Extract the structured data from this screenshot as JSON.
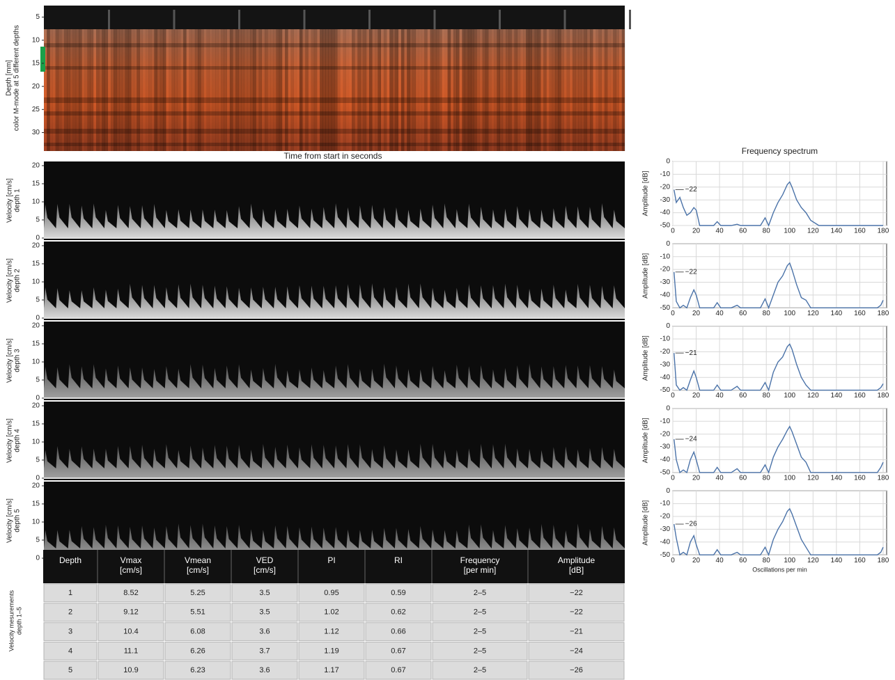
{
  "chart_data": [
    {
      "type": "heatmap",
      "ylabel": [
        "Depth [mm]",
        "color M-mode at 5 different depths"
      ],
      "xlabel": "Time from start in seconds",
      "ylim": [
        2.5,
        34
      ],
      "yticks": [
        5,
        10,
        15,
        20,
        25,
        30
      ]
    },
    {
      "type": "spectrogram",
      "ylabel": [
        "Velocity [cm/s]",
        "depth 1"
      ],
      "ylim": [
        0,
        20
      ],
      "yticks": [
        0,
        5,
        10,
        15,
        20
      ]
    },
    {
      "type": "spectrogram",
      "ylabel": [
        "Velocity [cm/s]",
        "depth 2"
      ],
      "ylim": [
        0,
        20
      ],
      "yticks": [
        0,
        5,
        10,
        15,
        20
      ]
    },
    {
      "type": "spectrogram",
      "ylabel": [
        "Velocity [cm/s]",
        "depth 3"
      ],
      "ylim": [
        0,
        20
      ],
      "yticks": [
        0,
        5,
        10,
        15,
        20
      ]
    },
    {
      "type": "spectrogram",
      "ylabel": [
        "Velocity [cm/s]",
        "depth 4"
      ],
      "ylim": [
        0,
        20
      ],
      "yticks": [
        0,
        5,
        10,
        15,
        20
      ]
    },
    {
      "type": "spectrogram",
      "ylabel": [
        "Velocity [cm/s]",
        "depth 5"
      ],
      "ylim": [
        0,
        20
      ],
      "yticks": [
        0,
        5,
        10,
        15,
        20
      ]
    },
    {
      "type": "line",
      "title": "Frequency spectrum",
      "ylabel": "Amplitude [dB]",
      "annotation": "−22",
      "color": "#4a72a8",
      "grid": true,
      "xlim": [
        0,
        183
      ],
      "ylim": [
        -50,
        0
      ],
      "xticks": [
        0,
        20,
        40,
        60,
        80,
        100,
        120,
        140,
        160,
        180
      ],
      "yticks": [
        0,
        -10,
        -20,
        -30,
        -40,
        -50
      ],
      "x": [
        1,
        3,
        6,
        9,
        12,
        15,
        18,
        20,
        23,
        26,
        35,
        38,
        41,
        50,
        55,
        58,
        75,
        79,
        82,
        86,
        90,
        94,
        98,
        100,
        102,
        106,
        110,
        114,
        118,
        125,
        140,
        160,
        175,
        178,
        180
      ],
      "values": [
        -22,
        -32,
        -28,
        -36,
        -42,
        -40,
        -36,
        -38,
        -50,
        -50,
        -50,
        -47,
        -50,
        -50,
        -49,
        -50,
        -50,
        -44,
        -50,
        -40,
        -32,
        -26,
        -18,
        -16,
        -20,
        -30,
        -36,
        -40,
        -46,
        -50,
        -50,
        -50,
        -50,
        -50,
        -50
      ]
    },
    {
      "type": "line",
      "ylabel": "Amplitude [dB]",
      "annotation": "−22",
      "color": "#4a72a8",
      "grid": true,
      "xlim": [
        0,
        183
      ],
      "ylim": [
        -50,
        0
      ],
      "xticks": [
        0,
        20,
        40,
        60,
        80,
        100,
        120,
        140,
        160,
        180
      ],
      "yticks": [
        0,
        -10,
        -20,
        -30,
        -40,
        -50
      ],
      "x": [
        1,
        3,
        6,
        9,
        12,
        15,
        18,
        20,
        23,
        26,
        35,
        38,
        41,
        50,
        55,
        58,
        75,
        79,
        82,
        86,
        90,
        94,
        98,
        100,
        102,
        106,
        110,
        114,
        118,
        125,
        140,
        160,
        175,
        178,
        180
      ],
      "values": [
        -22,
        -45,
        -50,
        -48,
        -50,
        -42,
        -36,
        -40,
        -50,
        -50,
        -50,
        -46,
        -50,
        -50,
        -48,
        -50,
        -50,
        -43,
        -50,
        -40,
        -30,
        -25,
        -17,
        -15,
        -20,
        -32,
        -42,
        -44,
        -50,
        -50,
        -50,
        -50,
        -50,
        -48,
        -44
      ]
    },
    {
      "type": "line",
      "ylabel": "Amplitude [dB]",
      "annotation": "−21",
      "color": "#4a72a8",
      "grid": true,
      "xlim": [
        0,
        183
      ],
      "ylim": [
        -50,
        0
      ],
      "xticks": [
        0,
        20,
        40,
        60,
        80,
        100,
        120,
        140,
        160,
        180
      ],
      "yticks": [
        0,
        -10,
        -20,
        -30,
        -40,
        -50
      ],
      "x": [
        1,
        3,
        6,
        9,
        12,
        15,
        18,
        20,
        23,
        26,
        35,
        38,
        41,
        50,
        55,
        58,
        75,
        79,
        82,
        86,
        90,
        94,
        98,
        100,
        102,
        106,
        110,
        114,
        118,
        125,
        140,
        160,
        175,
        178,
        180
      ],
      "values": [
        -21,
        -46,
        -50,
        -48,
        -50,
        -42,
        -35,
        -40,
        -50,
        -50,
        -50,
        -46,
        -50,
        -50,
        -47,
        -50,
        -50,
        -44,
        -50,
        -36,
        -28,
        -24,
        -16,
        -14,
        -18,
        -30,
        -40,
        -46,
        -50,
        -50,
        -50,
        -50,
        -50,
        -48,
        -45
      ]
    },
    {
      "type": "line",
      "ylabel": "Amplitude [dB]",
      "annotation": "−24",
      "color": "#4a72a8",
      "grid": true,
      "xlim": [
        0,
        183
      ],
      "ylim": [
        -50,
        0
      ],
      "xticks": [
        0,
        20,
        40,
        60,
        80,
        100,
        120,
        140,
        160,
        180
      ],
      "yticks": [
        0,
        -10,
        -20,
        -30,
        -40,
        -50
      ],
      "x": [
        1,
        3,
        6,
        9,
        12,
        15,
        18,
        20,
        23,
        26,
        35,
        38,
        41,
        50,
        55,
        58,
        75,
        79,
        82,
        86,
        90,
        94,
        98,
        100,
        102,
        106,
        110,
        114,
        118,
        125,
        140,
        160,
        175,
        178,
        180
      ],
      "values": [
        -24,
        -40,
        -50,
        -48,
        -50,
        -40,
        -34,
        -40,
        -50,
        -50,
        -50,
        -46,
        -50,
        -50,
        -47,
        -50,
        -50,
        -44,
        -50,
        -38,
        -30,
        -24,
        -17,
        -14,
        -18,
        -28,
        -38,
        -42,
        -50,
        -50,
        -50,
        -50,
        -50,
        -46,
        -42
      ]
    },
    {
      "type": "line",
      "ylabel": "Amplitude [dB]",
      "xlabel": "Oscillations per min",
      "annotation": "−26",
      "color": "#4a72a8",
      "grid": true,
      "xlim": [
        0,
        183
      ],
      "ylim": [
        -50,
        0
      ],
      "xticks": [
        0,
        20,
        40,
        60,
        80,
        100,
        120,
        140,
        160,
        180
      ],
      "yticks": [
        0,
        -10,
        -20,
        -30,
        -40,
        -50
      ],
      "x": [
        1,
        3,
        6,
        9,
        12,
        15,
        18,
        20,
        23,
        26,
        35,
        38,
        41,
        50,
        55,
        58,
        75,
        79,
        82,
        86,
        90,
        94,
        98,
        100,
        102,
        106,
        110,
        114,
        118,
        125,
        140,
        160,
        175,
        178,
        180
      ],
      "values": [
        -26,
        -37,
        -50,
        -48,
        -50,
        -40,
        -35,
        -42,
        -50,
        -50,
        -50,
        -46,
        -50,
        -50,
        -48,
        -50,
        -50,
        -44,
        -50,
        -38,
        -30,
        -24,
        -16,
        -14,
        -18,
        -28,
        -38,
        -44,
        -50,
        -50,
        -50,
        -50,
        -50,
        -48,
        -44
      ]
    }
  ],
  "table": {
    "side_label": [
      "Velocity mesurements",
      "depth 1–5"
    ],
    "header": [
      [
        "Depth"
      ],
      [
        "Vmax",
        "[cm/s]"
      ],
      [
        "Vmean",
        "[cm/s]"
      ],
      [
        "VED",
        "[cm/s]"
      ],
      [
        "PI"
      ],
      [
        "RI"
      ],
      [
        "Frequency",
        "[per min]"
      ],
      [
        "Amplitude",
        "[dB]"
      ]
    ],
    "rows": [
      [
        "1",
        "8.52",
        "5.25",
        "3.5",
        "0.95",
        "0.59",
        "2–5",
        "−22"
      ],
      [
        "2",
        "9.12",
        "5.51",
        "3.5",
        "1.02",
        "0.62",
        "2–5",
        "−22"
      ],
      [
        "3",
        "10.4",
        "6.08",
        "3.6",
        "1.12",
        "0.66",
        "2–5",
        "−21"
      ],
      [
        "4",
        "11.1",
        "6.26",
        "3.7",
        "1.19",
        "0.67",
        "2–5",
        "−24"
      ],
      [
        "5",
        "10.9",
        "6.23",
        "3.6",
        "1.17",
        "0.67",
        "2–5",
        "−26"
      ]
    ]
  }
}
